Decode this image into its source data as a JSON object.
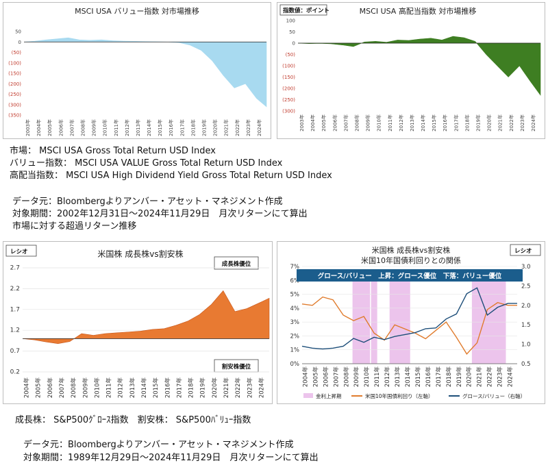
{
  "panels": {
    "value": {
      "title": "MSCI USA バリュー指数 対市場推移",
      "y_ticks": [
        "50",
        "0",
        "(50)",
        "(100)",
        "(150)",
        "(200)",
        "(250)",
        "(300)",
        "(350)"
      ],
      "x_ticks": [
        "2003年",
        "2004年",
        "2005年",
        "2006年",
        "2007年",
        "2008年",
        "2009年",
        "2010年",
        "2011年",
        "2012年",
        "2013年",
        "2014年",
        "2015年",
        "2016年",
        "2017年",
        "2018年",
        "2019年",
        "2020年",
        "2021年",
        "2022年",
        "2023年",
        "2024年"
      ],
      "color": "#a8daf0"
    },
    "highdiv": {
      "title": "MSCI USA 高配当指数 対市場推移",
      "chip": "指数値：ポイント",
      "y_ticks": [
        "100",
        "50",
        "0",
        "(50)",
        "(100)",
        "(150)",
        "(200)",
        "(250)",
        "(300)"
      ],
      "x_ticks": [
        "2003年",
        "2004年",
        "2005年",
        "2006年",
        "2007年",
        "2008年",
        "2009年",
        "2010年",
        "2011年",
        "2012年",
        "2013年",
        "2014年",
        "2015年",
        "2016年",
        "2017年",
        "2018年",
        "2019年",
        "2020年",
        "2021年",
        "2022年",
        "2023年",
        "2024年"
      ],
      "color": "#3e7e22"
    },
    "growth": {
      "title": "米国株 成長株vs割安株",
      "chip": "レシオ",
      "label_top": "成長株優位",
      "label_bottom": "割安株優位",
      "y_ticks": [
        "2.7",
        "2.2",
        "1.7",
        "1.2",
        "0.7",
        "0.2"
      ],
      "x_ticks": [
        "2004年",
        "2005年",
        "2006年",
        "2007年",
        "2008年",
        "2009年",
        "2010年",
        "2011年",
        "2012年",
        "2013年",
        "2014年",
        "2015年",
        "2016年",
        "2017年",
        "2018年",
        "2019年",
        "2020年",
        "2021年",
        "2022年",
        "2023年",
        "2024年"
      ],
      "color": "#e87a32"
    },
    "rates": {
      "title1": "米国株 成長株vs割安株",
      "title2": "米国10年国債利回りとの関係",
      "chip": "レシオ",
      "banner": "グロース/バリュー　上昇：グロース優位　下落：バリュー優位",
      "y_left": [
        "7%",
        "6%",
        "5%",
        "4%",
        "3%",
        "2%",
        "1%",
        "0%"
      ],
      "y_right": [
        "3.0",
        "2.5",
        "2.0",
        "1.5",
        "1.0",
        "0.5"
      ],
      "x_ticks": [
        "2004年",
        "2005年",
        "2006年",
        "2007年",
        "2008年",
        "2009年",
        "2010年",
        "2011年",
        "2012年",
        "2013年",
        "2014年",
        "2015年",
        "2016年",
        "2017年",
        "2018年",
        "2019年",
        "2020年",
        "2021年",
        "2022年",
        "2023年",
        "2024年"
      ],
      "legend": [
        "金利上昇期",
        "米国10年国債利回り（左軸）",
        "グロース/バリュー（右軸）"
      ],
      "shade_color": "#ecc4ec",
      "yield_color": "#e07b2c",
      "ratio_color": "#1d4e79"
    }
  },
  "info_top": [
    "市場： MSCI USA Gross Total Return USD Index",
    "バリュー指数： MSCI USA VALUE Gross Total Return USD Index",
    "高配当指数： MSCI USA High Dividend Yield Gross Total Return USD Index"
  ],
  "source_top": [
    "データ元：Bloombergよりアンバー・アセット・マネジメント作成",
    "対象期間：2002年12月31日～2024年11月29日　月次リターンにて算出",
    "市場に対する超過リターン推移"
  ],
  "info_bottom": "成長株： S&P500ｸﾞﾛｰｽ指数　割安株： S&P500ﾊﾞﾘｭｰ指数",
  "source_bottom": [
    "データ元：Bloombergよりアンバー・アセット・マネジメント作成",
    "対象期間：1989年12月29日～2024年11月29日　月次リターンにて算出"
  ],
  "chart_data": [
    {
      "type": "area",
      "title": "MSCI USA バリュー指数 対市場推移",
      "x": [
        2003,
        2004,
        2005,
        2006,
        2007,
        2008,
        2009,
        2010,
        2011,
        2012,
        2013,
        2014,
        2015,
        2016,
        2017,
        2018,
        2019,
        2020,
        2021,
        2022,
        2023,
        2024,
        2024.9
      ],
      "values": [
        0,
        4,
        10,
        15,
        20,
        10,
        8,
        10,
        6,
        4,
        3,
        2,
        1,
        0,
        -3,
        -15,
        -40,
        -90,
        -160,
        -220,
        -200,
        -270,
        -310
      ],
      "ylim": [
        -350,
        50
      ]
    },
    {
      "type": "area",
      "title": "MSCI USA 高配当指数 対市場推移",
      "x": [
        2003,
        2004,
        2005,
        2006,
        2007,
        2008,
        2009,
        2010,
        2011,
        2012,
        2013,
        2014,
        2015,
        2016,
        2017,
        2018,
        2019,
        2020,
        2021,
        2022,
        2023,
        2024,
        2024.9
      ],
      "values": [
        0,
        -2,
        -1,
        -3,
        -8,
        -15,
        5,
        8,
        4,
        14,
        12,
        18,
        22,
        14,
        30,
        24,
        8,
        -50,
        -100,
        -150,
        -100,
        -170,
        -230
      ],
      "ylim": [
        -300,
        100
      ]
    },
    {
      "type": "area",
      "title": "米国株 成長株vs割安株",
      "x": [
        2004,
        2005,
        2006,
        2007,
        2008,
        2009,
        2010,
        2011,
        2012,
        2013,
        2014,
        2015,
        2016,
        2017,
        2018,
        2019,
        2020,
        2021,
        2022,
        2023,
        2024,
        2024.9
      ],
      "values": [
        1.0,
        0.97,
        0.92,
        0.88,
        0.93,
        1.12,
        1.08,
        1.12,
        1.14,
        1.16,
        1.18,
        1.22,
        1.24,
        1.32,
        1.42,
        1.58,
        1.82,
        2.15,
        1.65,
        1.72,
        1.85,
        1.97
      ],
      "ylim": [
        0.2,
        2.7
      ]
    },
    {
      "type": "line",
      "title": "米国10年国債利回りとの関係",
      "x": [
        2004,
        2005,
        2006,
        2007,
        2008,
        2009,
        2010,
        2011,
        2012,
        2013,
        2014,
        2015,
        2016,
        2017,
        2018,
        2019,
        2020,
        2021,
        2022,
        2023,
        2024,
        2024.9
      ],
      "series": [
        {
          "name": "米国10年国債利回り（左軸）",
          "axis": "left",
          "values": [
            4.3,
            4.2,
            4.8,
            4.6,
            3.5,
            3.1,
            3.4,
            2.2,
            1.7,
            2.8,
            2.5,
            2.2,
            1.8,
            2.4,
            3.0,
            1.9,
            0.7,
            1.5,
            3.9,
            4.4,
            4.2,
            4.2
          ]
        },
        {
          "name": "グロース/バリュー（右軸）",
          "axis": "right",
          "values": [
            0.95,
            0.9,
            0.88,
            0.9,
            0.95,
            1.15,
            1.05,
            1.18,
            1.12,
            1.2,
            1.25,
            1.3,
            1.4,
            1.42,
            1.65,
            1.78,
            2.3,
            2.45,
            1.75,
            1.95,
            2.05,
            2.05
          ]
        }
      ],
      "shaded_periods": [
        [
          2008.9,
          2010.6
        ],
        [
          2010.7,
          2011.3
        ],
        [
          2012.5,
          2014.5
        ],
        [
          2020.5,
          2023.8
        ]
      ],
      "ylim_left": [
        0,
        7
      ],
      "ylim_right": [
        0.5,
        3.0
      ]
    }
  ]
}
